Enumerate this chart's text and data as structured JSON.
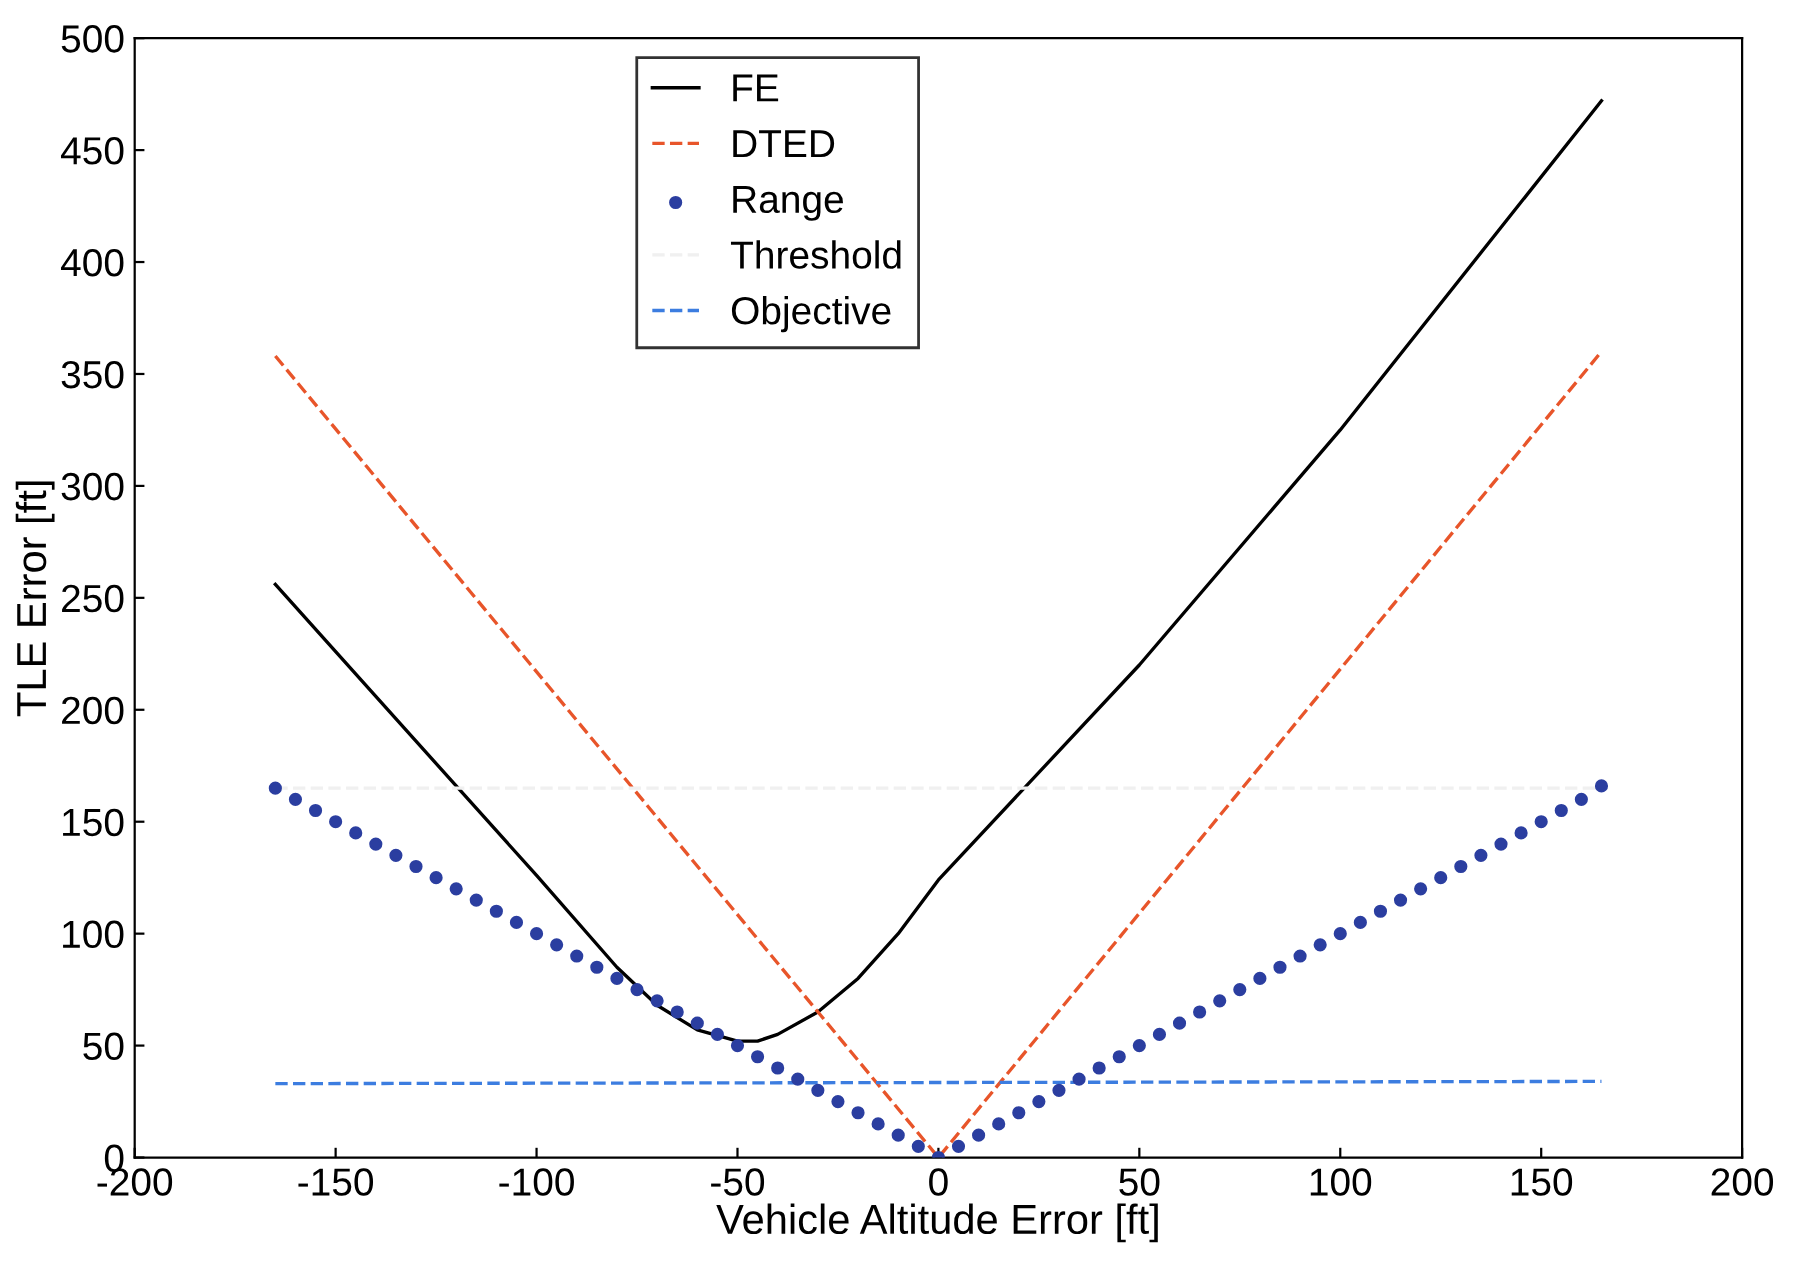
{
  "chart_data": {
    "type": "line",
    "xlabel": "Vehicle Altitude Error [ft]",
    "ylabel": "TLE Error [ft]",
    "xlim": [
      -200,
      200
    ],
    "ylim": [
      0,
      500
    ],
    "xticks": [
      -200,
      -150,
      -100,
      -50,
      0,
      50,
      100,
      150,
      200
    ],
    "yticks": [
      0,
      50,
      100,
      150,
      200,
      250,
      300,
      350,
      400,
      450,
      500
    ],
    "grid": false,
    "legend": "top",
    "series": [
      {
        "name": "FE",
        "color": "#000000",
        "line_style": "solid",
        "marker": "none",
        "x": [
          -165,
          -140,
          -120,
          -100,
          -80,
          -70,
          -60,
          -50,
          -45,
          -40,
          -30,
          -20,
          -10,
          0,
          50,
          100,
          165
        ],
        "values": [
          256,
          206,
          166,
          126,
          85,
          68,
          57,
          52,
          52,
          55,
          65,
          80,
          100,
          124,
          220,
          325,
          472
        ]
      },
      {
        "name": "DTED",
        "color": "#e8552a",
        "line_style": "dashed",
        "marker": "none",
        "x": [
          -165,
          0,
          165
        ],
        "values": [
          358,
          0,
          360
        ]
      },
      {
        "name": "Range",
        "type": "scatter",
        "color": "#2b3ea0",
        "marker": "circle",
        "x": [
          -165,
          -160,
          -155,
          -150,
          -145,
          -140,
          -135,
          -130,
          -125,
          -120,
          -115,
          -110,
          -105,
          -100,
          -95,
          -90,
          -85,
          -80,
          -75,
          -70,
          -65,
          -60,
          -55,
          -50,
          -45,
          -40,
          -35,
          -30,
          -25,
          -20,
          -15,
          -10,
          -5,
          0,
          5,
          10,
          15,
          20,
          25,
          30,
          35,
          40,
          45,
          50,
          55,
          60,
          65,
          70,
          75,
          80,
          85,
          90,
          95,
          100,
          105,
          110,
          115,
          120,
          125,
          130,
          135,
          140,
          145,
          150,
          155,
          160,
          165
        ],
        "values": [
          165,
          160,
          155,
          150,
          145,
          140,
          135,
          130,
          125,
          120,
          115,
          110,
          105,
          100,
          95,
          90,
          85,
          80,
          75,
          70,
          65,
          60,
          55,
          50,
          45,
          40,
          35,
          30,
          25,
          20,
          15,
          10,
          5,
          0,
          5,
          10,
          15,
          20,
          25,
          30,
          35,
          40,
          45,
          50,
          55,
          60,
          65,
          70,
          75,
          80,
          85,
          90,
          95,
          100,
          105,
          110,
          115,
          120,
          125,
          130,
          135,
          140,
          145,
          150,
          155,
          160,
          166
        ]
      },
      {
        "name": "Threshold",
        "color": "#f0f0f0",
        "line_style": "dashed",
        "marker": "none",
        "x": [
          -165,
          165
        ],
        "values": [
          165,
          165
        ]
      },
      {
        "name": "Objective",
        "color": "#3c7de0",
        "line_style": "dashed",
        "marker": "none",
        "x": [
          -165,
          165
        ],
        "values": [
          33,
          34
        ]
      }
    ]
  }
}
